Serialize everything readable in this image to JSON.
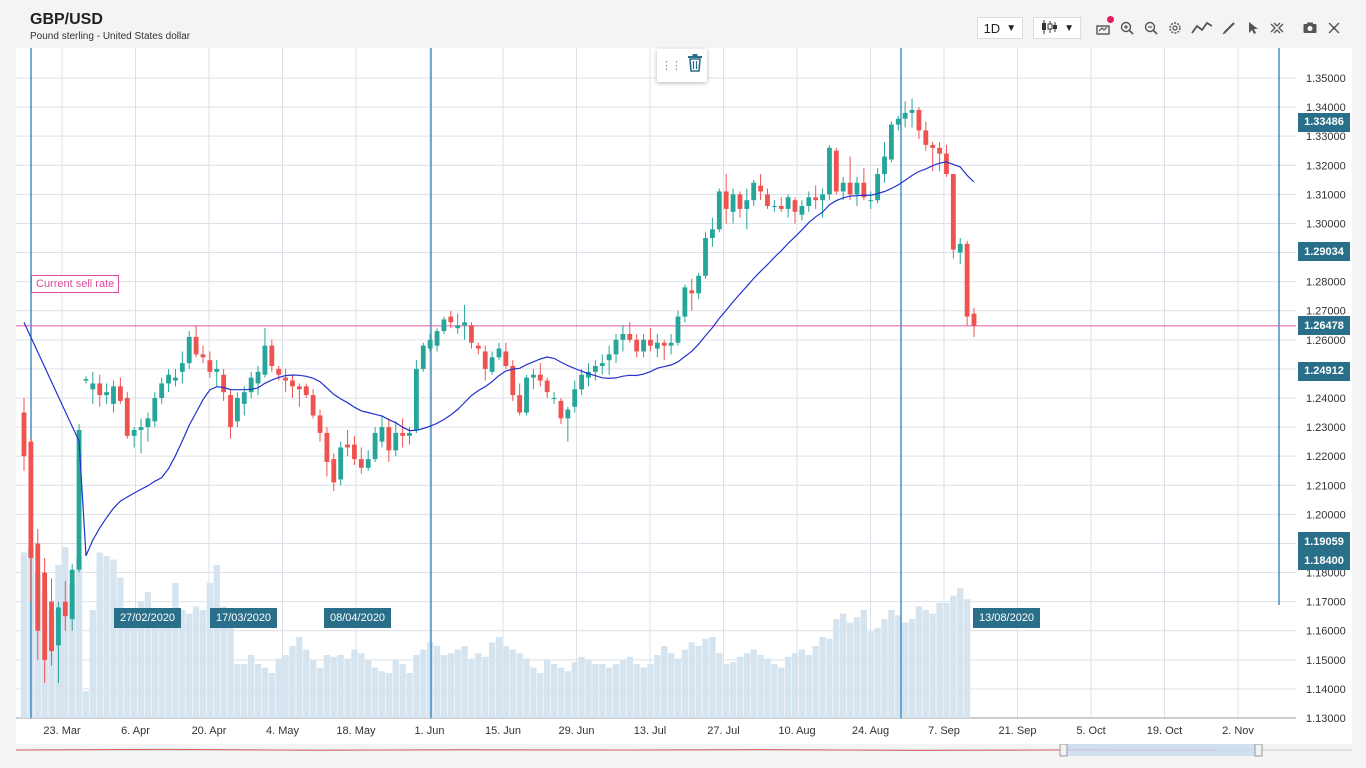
{
  "header": {
    "title": "GBP/USD",
    "subtitle": "Pound sterling - United States dollar",
    "interval": "1D"
  },
  "toolbar_icons": [
    "chart-type-icon",
    "alert-icon",
    "zoom-in-icon",
    "zoom-out-icon",
    "settings-icon",
    "indicators-icon",
    "draw-icon",
    "cursor-icon",
    "crosshair-icon",
    "camera-icon",
    "fullscreen-icon"
  ],
  "sell_rate_label": "Current sell rate",
  "popup": {
    "delete_icon": "trash-icon"
  },
  "price_markers": [
    "1.33486",
    "1.29034",
    "1.26478",
    "1.24912",
    "1.19059",
    "1.18400"
  ],
  "date_labels": [
    "27/02/2020",
    "17/03/2020",
    "08/04/2020",
    "13/08/2020"
  ],
  "colors": {
    "up": "#26a69a",
    "down": "#ef5350",
    "ma": "#2233cc",
    "volume": "#d6e4f0",
    "sell_line": "#e05cae",
    "marker_bg": "#2a6f8a",
    "vline": "#2d7fb8"
  },
  "chart_data": {
    "type": "candlestick",
    "title": "GBP/USD",
    "subtitle": "Pound sterling - United States dollar",
    "ylim": [
      1.13,
      1.355
    ],
    "y_ticks": [
      "1.35000",
      "1.34000",
      "1.33000",
      "1.32000",
      "1.31000",
      "1.30000",
      "1.29000",
      "1.28000",
      "1.27000",
      "1.26000",
      "1.25000",
      "1.24000",
      "1.23000",
      "1.22000",
      "1.21000",
      "1.20000",
      "1.19000",
      "1.18000",
      "1.17000",
      "1.16000",
      "1.15000",
      "1.14000",
      "1.13000"
    ],
    "x_ticks": [
      "23. Mar",
      "6. Apr",
      "20. Apr",
      "4. May",
      "18. May",
      "1. Jun",
      "15. Jun",
      "29. Jun",
      "13. Jul",
      "27. Jul",
      "10. Aug",
      "24. Aug",
      "7. Sep",
      "21. Sep",
      "5. Oct",
      "19. Oct",
      "2. Nov"
    ],
    "current_sell_rate": 1.26478,
    "moving_average": true,
    "candles": [
      [
        1.235,
        1.24,
        1.215,
        1.22
      ],
      [
        1.225,
        1.226,
        1.17,
        1.185
      ],
      [
        1.19,
        1.195,
        1.15,
        1.16
      ],
      [
        1.18,
        1.185,
        1.142,
        1.15
      ],
      [
        1.17,
        1.178,
        1.148,
        1.153
      ],
      [
        1.155,
        1.17,
        1.142,
        1.168
      ],
      [
        1.17,
        1.177,
        1.16,
        1.165
      ],
      [
        1.164,
        1.183,
        1.16,
        1.181
      ],
      [
        1.181,
        1.231,
        1.18,
        1.229
      ],
      [
        1.246,
        1.2475,
        1.245,
        1.2465
      ],
      [
        1.243,
        1.249,
        1.238,
        1.245
      ],
      [
        1.245,
        1.248,
        1.237,
        1.241
      ],
      [
        1.241,
        1.245,
        1.238,
        1.242
      ],
      [
        1.238,
        1.246,
        1.235,
        1.244
      ],
      [
        1.244,
        1.247,
        1.238,
        1.239
      ],
      [
        1.24,
        1.242,
        1.226,
        1.227
      ],
      [
        1.227,
        1.23,
        1.223,
        1.229
      ],
      [
        1.229,
        1.233,
        1.221,
        1.23
      ],
      [
        1.23,
        1.235,
        1.225,
        1.233
      ],
      [
        1.232,
        1.242,
        1.23,
        1.24
      ],
      [
        1.24,
        1.247,
        1.238,
        1.245
      ],
      [
        1.245,
        1.25,
        1.242,
        1.248
      ],
      [
        1.246,
        1.25,
        1.244,
        1.247
      ],
      [
        1.249,
        1.256,
        1.245,
        1.252
      ],
      [
        1.252,
        1.263,
        1.25,
        1.261
      ],
      [
        1.261,
        1.265,
        1.254,
        1.255
      ],
      [
        1.255,
        1.258,
        1.252,
        1.254
      ],
      [
        1.253,
        1.256,
        1.247,
        1.249
      ],
      [
        1.249,
        1.253,
        1.244,
        1.25
      ],
      [
        1.248,
        1.25,
        1.239,
        1.242
      ],
      [
        1.241,
        1.243,
        1.226,
        1.23
      ],
      [
        1.232,
        1.242,
        1.23,
        1.24
      ],
      [
        1.238,
        1.244,
        1.234,
        1.242
      ],
      [
        1.242,
        1.249,
        1.24,
        1.247
      ],
      [
        1.245,
        1.251,
        1.241,
        1.249
      ],
      [
        1.248,
        1.264,
        1.247,
        1.258
      ],
      [
        1.258,
        1.26,
        1.249,
        1.251
      ],
      [
        1.25,
        1.251,
        1.246,
        1.248
      ],
      [
        1.247,
        1.25,
        1.242,
        1.246
      ],
      [
        1.246,
        1.248,
        1.24,
        1.244
      ],
      [
        1.244,
        1.245,
        1.237,
        1.243
      ],
      [
        1.244,
        1.245,
        1.24,
        1.241
      ],
      [
        1.241,
        1.243,
        1.233,
        1.234
      ],
      [
        1.234,
        1.236,
        1.225,
        1.228
      ],
      [
        1.228,
        1.23,
        1.213,
        1.218
      ],
      [
        1.219,
        1.221,
        1.208,
        1.211
      ],
      [
        1.212,
        1.225,
        1.21,
        1.223
      ],
      [
        1.224,
        1.229,
        1.22,
        1.223
      ],
      [
        1.224,
        1.227,
        1.217,
        1.219
      ],
      [
        1.219,
        1.223,
        1.214,
        1.216
      ],
      [
        1.216,
        1.222,
        1.215,
        1.219
      ],
      [
        1.219,
        1.23,
        1.218,
        1.228
      ],
      [
        1.225,
        1.234,
        1.223,
        1.23
      ],
      [
        1.23,
        1.233,
        1.218,
        1.222
      ],
      [
        1.222,
        1.232,
        1.22,
        1.228
      ],
      [
        1.228,
        1.233,
        1.223,
        1.227
      ],
      [
        1.227,
        1.23,
        1.224,
        1.228
      ],
      [
        1.229,
        1.253,
        1.228,
        1.25
      ],
      [
        1.25,
        1.259,
        1.249,
        1.258
      ],
      [
        1.257,
        1.262,
        1.256,
        1.26
      ],
      [
        1.258,
        1.264,
        1.256,
        1.263
      ],
      [
        1.263,
        1.268,
        1.262,
        1.267
      ],
      [
        1.268,
        1.27,
        1.264,
        1.266
      ],
      [
        1.264,
        1.269,
        1.262,
        1.265
      ],
      [
        1.265,
        1.272,
        1.26,
        1.266
      ],
      [
        1.265,
        1.266,
        1.257,
        1.259
      ],
      [
        1.258,
        1.259,
        1.255,
        1.257
      ],
      [
        1.256,
        1.258,
        1.246,
        1.25
      ],
      [
        1.249,
        1.256,
        1.248,
        1.254
      ],
      [
        1.254,
        1.259,
        1.253,
        1.257
      ],
      [
        1.256,
        1.259,
        1.25,
        1.251
      ],
      [
        1.251,
        1.253,
        1.239,
        1.241
      ],
      [
        1.241,
        1.245,
        1.234,
        1.235
      ],
      [
        1.235,
        1.248,
        1.234,
        1.247
      ],
      [
        1.247,
        1.25,
        1.243,
        1.248
      ],
      [
        1.248,
        1.252,
        1.244,
        1.246
      ],
      [
        1.246,
        1.247,
        1.24,
        1.242
      ],
      [
        1.24,
        1.242,
        1.238,
        1.24
      ],
      [
        1.239,
        1.24,
        1.231,
        1.233
      ],
      [
        1.233,
        1.237,
        1.225,
        1.236
      ],
      [
        1.237,
        1.246,
        1.235,
        1.243
      ],
      [
        1.243,
        1.25,
        1.241,
        1.248
      ],
      [
        1.247,
        1.252,
        1.244,
        1.249
      ],
      [
        1.249,
        1.253,
        1.246,
        1.251
      ],
      [
        1.251,
        1.255,
        1.248,
        1.252
      ],
      [
        1.253,
        1.258,
        1.248,
        1.255
      ],
      [
        1.255,
        1.262,
        1.252,
        1.26
      ],
      [
        1.26,
        1.265,
        1.256,
        1.262
      ],
      [
        1.262,
        1.266,
        1.259,
        1.26
      ],
      [
        1.26,
        1.262,
        1.254,
        1.256
      ],
      [
        1.256,
        1.262,
        1.254,
        1.26
      ],
      [
        1.26,
        1.264,
        1.256,
        1.258
      ],
      [
        1.257,
        1.262,
        1.254,
        1.259
      ],
      [
        1.259,
        1.26,
        1.253,
        1.258
      ],
      [
        1.258,
        1.262,
        1.255,
        1.259
      ],
      [
        1.259,
        1.27,
        1.258,
        1.268
      ],
      [
        1.268,
        1.279,
        1.266,
        1.278
      ],
      [
        1.277,
        1.281,
        1.27,
        1.276
      ],
      [
        1.276,
        1.283,
        1.274,
        1.282
      ],
      [
        1.282,
        1.297,
        1.281,
        1.295
      ],
      [
        1.295,
        1.302,
        1.292,
        1.298
      ],
      [
        1.298,
        1.312,
        1.297,
        1.311
      ],
      [
        1.311,
        1.317,
        1.3,
        1.305
      ],
      [
        1.304,
        1.312,
        1.3,
        1.31
      ],
      [
        1.31,
        1.311,
        1.302,
        1.305
      ],
      [
        1.305,
        1.312,
        1.298,
        1.308
      ],
      [
        1.308,
        1.315,
        1.306,
        1.314
      ],
      [
        1.313,
        1.317,
        1.308,
        1.311
      ],
      [
        1.31,
        1.312,
        1.305,
        1.306
      ],
      [
        1.306,
        1.308,
        1.304,
        1.306
      ],
      [
        1.306,
        1.309,
        1.304,
        1.305
      ],
      [
        1.305,
        1.31,
        1.302,
        1.309
      ],
      [
        1.308,
        1.309,
        1.3,
        1.304
      ],
      [
        1.303,
        1.308,
        1.301,
        1.306
      ],
      [
        1.306,
        1.311,
        1.304,
        1.309
      ],
      [
        1.309,
        1.313,
        1.305,
        1.308
      ],
      [
        1.308,
        1.312,
        1.302,
        1.31
      ],
      [
        1.31,
        1.327,
        1.308,
        1.326
      ],
      [
        1.325,
        1.326,
        1.31,
        1.311
      ],
      [
        1.311,
        1.316,
        1.308,
        1.314
      ],
      [
        1.314,
        1.323,
        1.308,
        1.31
      ],
      [
        1.31,
        1.316,
        1.306,
        1.314
      ],
      [
        1.314,
        1.319,
        1.308,
        1.309
      ],
      [
        1.308,
        1.311,
        1.305,
        1.308
      ],
      [
        1.308,
        1.319,
        1.307,
        1.317
      ],
      [
        1.317,
        1.328,
        1.314,
        1.323
      ],
      [
        1.322,
        1.335,
        1.321,
        1.334
      ],
      [
        1.334,
        1.337,
        1.332,
        1.336
      ],
      [
        1.336,
        1.342,
        1.333,
        1.338
      ],
      [
        1.338,
        1.343,
        1.333,
        1.339
      ],
      [
        1.339,
        1.34,
        1.329,
        1.332
      ],
      [
        1.332,
        1.335,
        1.325,
        1.327
      ],
      [
        1.327,
        1.328,
        1.318,
        1.326
      ],
      [
        1.326,
        1.328,
        1.318,
        1.324
      ],
      [
        1.324,
        1.327,
        1.316,
        1.317
      ],
      [
        1.317,
        1.317,
        1.288,
        1.291
      ],
      [
        1.29,
        1.295,
        1.286,
        1.293
      ],
      [
        1.293,
        1.294,
        1.265,
        1.268
      ],
      [
        1.269,
        1.271,
        1.261,
        1.2648
      ]
    ],
    "volume": [
      0.92,
      0.95,
      0.8,
      0.7,
      0.6,
      0.85,
      0.95,
      0.75,
      0.9,
      0.15,
      0.6,
      0.92,
      0.9,
      0.88,
      0.78,
      0.55,
      0.6,
      0.65,
      0.7,
      0.6,
      0.5,
      0.52,
      0.75,
      0.6,
      0.58,
      0.62,
      0.6,
      0.75,
      0.85,
      0.62,
      0.55,
      0.3,
      0.3,
      0.35,
      0.3,
      0.28,
      0.25,
      0.33,
      0.35,
      0.4,
      0.45,
      0.38,
      0.32,
      0.28,
      0.35,
      0.34,
      0.35,
      0.33,
      0.38,
      0.36,
      0.32,
      0.28,
      0.26,
      0.25,
      0.32,
      0.3,
      0.25,
      0.35,
      0.38,
      0.42,
      0.4,
      0.35,
      0.36,
      0.38,
      0.4,
      0.33,
      0.36,
      0.34,
      0.42,
      0.45,
      0.4,
      0.38,
      0.36,
      0.33,
      0.28,
      0.25,
      0.32,
      0.3,
      0.28,
      0.26,
      0.31,
      0.34,
      0.32,
      0.3,
      0.3,
      0.28,
      0.3,
      0.32,
      0.34,
      0.3,
      0.28,
      0.3,
      0.35,
      0.4,
      0.36,
      0.33,
      0.38,
      0.42,
      0.4,
      0.44,
      0.45,
      0.36,
      0.3,
      0.31,
      0.34,
      0.36,
      0.38,
      0.35,
      0.33,
      0.3,
      0.28,
      0.34,
      0.36,
      0.38,
      0.35,
      0.4,
      0.45,
      0.44,
      0.55,
      0.58,
      0.53,
      0.56,
      0.6,
      0.48,
      0.5,
      0.55,
      0.6,
      0.57,
      0.53,
      0.55,
      0.62,
      0.6,
      0.58,
      0.64,
      0.64,
      0.68,
      0.72,
      0.66
    ]
  }
}
